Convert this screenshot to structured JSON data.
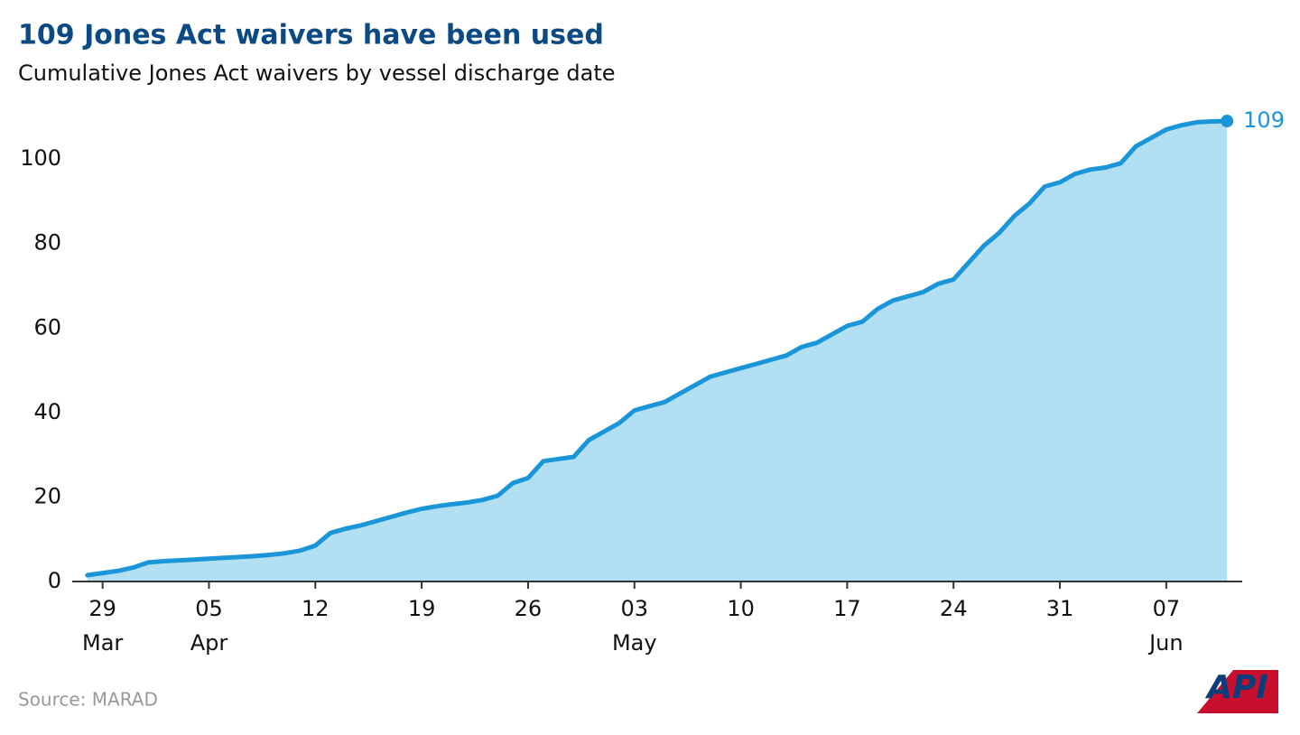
{
  "chart_data": {
    "type": "area",
    "title": "109 Jones Act waivers have been used",
    "subtitle": "Cumulative Jones Act waivers by vessel discharge date",
    "source": "Source: MARAD",
    "logo": "API",
    "x": [
      "03-28",
      "03-29",
      "03-30",
      "03-31",
      "04-01",
      "04-02",
      "04-03",
      "04-04",
      "04-05",
      "04-06",
      "04-07",
      "04-08",
      "04-09",
      "04-10",
      "04-11",
      "04-12",
      "04-13",
      "04-14",
      "04-15",
      "04-16",
      "04-17",
      "04-18",
      "04-19",
      "04-20",
      "04-21",
      "04-22",
      "04-23",
      "04-24",
      "04-25",
      "04-26",
      "04-27",
      "04-28",
      "04-29",
      "04-30",
      "05-01",
      "05-02",
      "05-03",
      "05-04",
      "05-05",
      "05-06",
      "05-07",
      "05-08",
      "05-09",
      "05-10",
      "05-11",
      "05-12",
      "05-13",
      "05-14",
      "05-15",
      "05-16",
      "05-17",
      "05-18",
      "05-19",
      "05-20",
      "05-21",
      "05-22",
      "05-23",
      "05-24",
      "05-25",
      "05-26",
      "05-27",
      "05-28",
      "05-29",
      "05-30",
      "05-31",
      "06-01",
      "06-02",
      "06-03",
      "06-04",
      "06-05",
      "06-06",
      "06-07",
      "06-08",
      "06-09",
      "06-10",
      "06-11"
    ],
    "series": [
      {
        "name": "Cumulative Jones Act waivers",
        "color": "#1a96d8",
        "fill": "#b3dff3",
        "values": [
          1.5,
          2,
          2.5,
          3.3,
          4.5,
          4.8,
          5,
          5.2,
          5.4,
          5.6,
          5.8,
          6,
          6.3,
          6.7,
          7.3,
          8.5,
          11.5,
          12.5,
          13.3,
          14.3,
          15.3,
          16.3,
          17.2,
          17.8,
          18.3,
          18.7,
          19.3,
          20.3,
          23.3,
          24.5,
          28.5,
          29,
          29.5,
          33.5,
          35.5,
          37.5,
          40.5,
          41.5,
          42.5,
          44.5,
          46.5,
          48.5,
          49.5,
          50.5,
          51.5,
          52.5,
          53.5,
          55.5,
          56.5,
          58.5,
          60.5,
          61.5,
          64.5,
          66.5,
          67.5,
          68.5,
          70.5,
          71.5,
          75.5,
          79.5,
          82.5,
          86.5,
          89.5,
          93.5,
          94.5,
          96.5,
          97.5,
          98,
          99,
          103,
          105,
          107,
          108,
          108.7,
          108.9,
          109
        ]
      }
    ],
    "end_label": "109",
    "xlim": [
      "03-27",
      "06-12"
    ],
    "xticks": [
      {
        "value": "03-29",
        "label": "29",
        "sublabel": "Mar"
      },
      {
        "value": "04-05",
        "label": "05",
        "sublabel": "Apr"
      },
      {
        "value": "04-12",
        "label": "12"
      },
      {
        "value": "04-19",
        "label": "19"
      },
      {
        "value": "04-26",
        "label": "26"
      },
      {
        "value": "05-03",
        "label": "03",
        "sublabel": "May"
      },
      {
        "value": "05-10",
        "label": "10"
      },
      {
        "value": "05-17",
        "label": "17"
      },
      {
        "value": "05-24",
        "label": "24"
      },
      {
        "value": "05-31",
        "label": "31"
      },
      {
        "value": "06-07",
        "label": "07",
        "sublabel": "Jun"
      }
    ],
    "ylim": [
      0,
      112
    ],
    "yticks": [
      0,
      20,
      40,
      60,
      80,
      100
    ],
    "grid": false
  }
}
